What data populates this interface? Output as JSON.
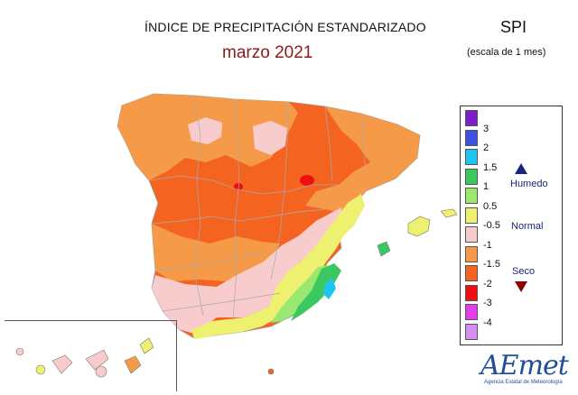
{
  "header": {
    "title": "ÍNDICE DE PRECIPITACIÓN ESTANDARIZADO",
    "subtitle": "marzo 2021",
    "index_label": "SPI",
    "scale_label": "(escala de 1 mes)"
  },
  "legend": {
    "colors": [
      "#7b1fcc",
      "#3f51e0",
      "#20c4f0",
      "#3cc860",
      "#9be870",
      "#eef070",
      "#f8cccc",
      "#f59a48",
      "#f46420",
      "#ee1010",
      "#e23fe8",
      "#d58df0"
    ],
    "ticks": [
      "3",
      "2",
      "1.5",
      "1",
      "0.5",
      "-0.5",
      "-1",
      "-1.5",
      "-2",
      "-3",
      "-4"
    ],
    "categories": {
      "wet": "Humedo",
      "normal": "Normal",
      "dry": "Seco"
    }
  },
  "colors": {
    "very_dry": "#f46420",
    "dry": "#f59a48",
    "slightly_dry": "#f8cccc",
    "normal": "#eef070",
    "wet": "#9be870",
    "very_wet": "#3cc860",
    "extreme_wet": "#20c4f0",
    "extreme_dry": "#ee1010"
  },
  "logo": {
    "name": "AEmet",
    "subtitle": "Agencia Estatal de Meteorología"
  }
}
